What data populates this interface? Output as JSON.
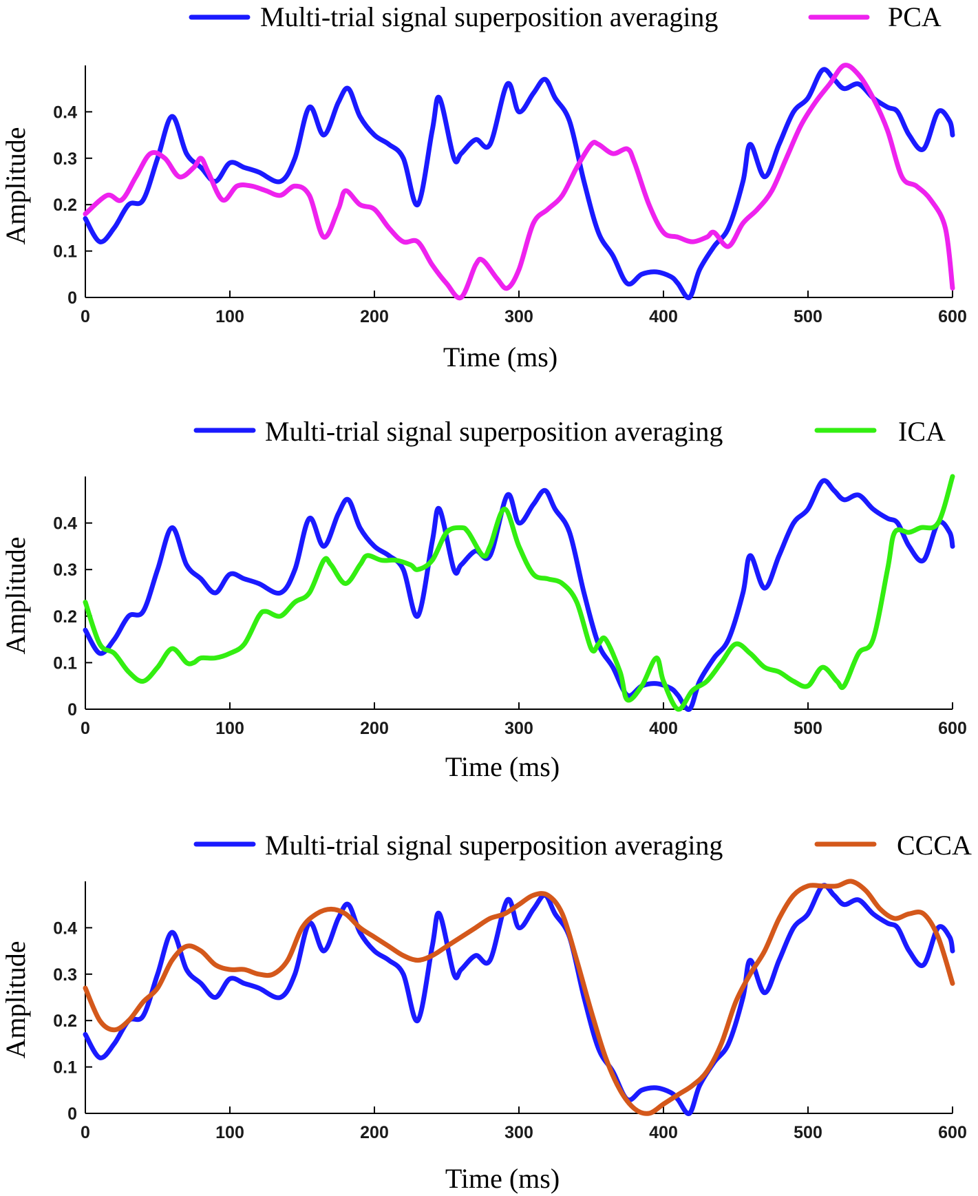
{
  "colors": {
    "blue": "#1a1aff",
    "pca": "#ee22ee",
    "ica": "#33ee11",
    "ccca": "#d4581b"
  },
  "chart_data": [
    {
      "type": "line",
      "xlabel": "Time (ms)",
      "ylabel": "Amplitude",
      "xlim": [
        0,
        600
      ],
      "ylim": [
        0,
        0.5
      ],
      "xticks": [
        "0",
        "100",
        "200",
        "300",
        "400",
        "500",
        "600"
      ],
      "yticks": [
        "0",
        "0.1",
        "0.2",
        "0.3",
        "0.4"
      ],
      "legend_position": "top",
      "series": [
        {
          "name": "Multi-trial signal superposition averaging",
          "color": "#1a1aff",
          "x": [
            0,
            10,
            20,
            30,
            40,
            50,
            60,
            70,
            80,
            90,
            100,
            110,
            120,
            135,
            145,
            155,
            165,
            175,
            182,
            190,
            200,
            210,
            220,
            230,
            240,
            245,
            255,
            260,
            270,
            280,
            292,
            300,
            310,
            318,
            325,
            335,
            345,
            355,
            365,
            375,
            385,
            395,
            405,
            410,
            418,
            425,
            435,
            445,
            455,
            460,
            470,
            480,
            490,
            500,
            510,
            518,
            525,
            535,
            545,
            555,
            562,
            570,
            580,
            590,
            598,
            600
          ],
          "values": [
            0.17,
            0.12,
            0.15,
            0.2,
            0.21,
            0.3,
            0.39,
            0.31,
            0.28,
            0.25,
            0.29,
            0.28,
            0.27,
            0.25,
            0.3,
            0.41,
            0.35,
            0.42,
            0.45,
            0.39,
            0.35,
            0.33,
            0.3,
            0.2,
            0.36,
            0.43,
            0.3,
            0.31,
            0.34,
            0.33,
            0.46,
            0.4,
            0.44,
            0.47,
            0.43,
            0.38,
            0.25,
            0.14,
            0.09,
            0.03,
            0.05,
            0.055,
            0.045,
            0.03,
            0.0,
            0.06,
            0.11,
            0.15,
            0.25,
            0.33,
            0.26,
            0.33,
            0.4,
            0.43,
            0.49,
            0.47,
            0.45,
            0.46,
            0.43,
            0.41,
            0.4,
            0.35,
            0.32,
            0.4,
            0.38,
            0.35
          ]
        },
        {
          "name": "PCA",
          "color": "#ee22ee",
          "x": [
            0,
            15,
            25,
            35,
            45,
            55,
            65,
            75,
            80,
            85,
            95,
            105,
            115,
            125,
            135,
            145,
            155,
            165,
            175,
            180,
            190,
            200,
            210,
            220,
            230,
            240,
            250,
            260,
            270,
            275,
            285,
            292,
            300,
            310,
            320,
            330,
            340,
            350,
            355,
            365,
            375,
            380,
            390,
            400,
            410,
            420,
            430,
            435,
            445,
            455,
            465,
            475,
            485,
            495,
            505,
            515,
            525,
            535,
            545,
            555,
            565,
            575,
            585,
            595,
            600
          ],
          "values": [
            0.18,
            0.22,
            0.21,
            0.26,
            0.31,
            0.3,
            0.26,
            0.28,
            0.3,
            0.27,
            0.21,
            0.24,
            0.24,
            0.23,
            0.22,
            0.24,
            0.22,
            0.13,
            0.19,
            0.23,
            0.2,
            0.19,
            0.15,
            0.12,
            0.12,
            0.07,
            0.03,
            0.0,
            0.07,
            0.08,
            0.04,
            0.02,
            0.06,
            0.16,
            0.19,
            0.22,
            0.28,
            0.33,
            0.33,
            0.31,
            0.32,
            0.29,
            0.2,
            0.14,
            0.13,
            0.12,
            0.13,
            0.14,
            0.11,
            0.16,
            0.19,
            0.23,
            0.3,
            0.37,
            0.42,
            0.46,
            0.5,
            0.48,
            0.43,
            0.36,
            0.26,
            0.24,
            0.21,
            0.15,
            0.02
          ]
        }
      ]
    },
    {
      "type": "line",
      "xlabel": "Time (ms)",
      "ylabel": "Amplitude",
      "xlim": [
        0,
        600
      ],
      "ylim": [
        0,
        0.5
      ],
      "xticks": [
        "0",
        "100",
        "200",
        "300",
        "400",
        "500",
        "600"
      ],
      "yticks": [
        "0",
        "0.1",
        "0.2",
        "0.3",
        "0.4"
      ],
      "legend_position": "top",
      "series": [
        {
          "name": "Multi-trial signal superposition averaging",
          "color": "#1a1aff",
          "x": [
            0,
            10,
            20,
            30,
            40,
            50,
            60,
            70,
            80,
            90,
            100,
            110,
            120,
            135,
            145,
            155,
            165,
            175,
            182,
            190,
            200,
            210,
            220,
            230,
            240,
            245,
            255,
            260,
            270,
            280,
            292,
            300,
            310,
            318,
            325,
            335,
            345,
            355,
            365,
            375,
            385,
            395,
            405,
            410,
            418,
            425,
            435,
            445,
            455,
            460,
            470,
            480,
            490,
            500,
            510,
            518,
            525,
            535,
            545,
            555,
            562,
            570,
            580,
            590,
            598,
            600
          ],
          "values": [
            0.17,
            0.12,
            0.15,
            0.2,
            0.21,
            0.3,
            0.39,
            0.31,
            0.28,
            0.25,
            0.29,
            0.28,
            0.27,
            0.25,
            0.3,
            0.41,
            0.35,
            0.42,
            0.45,
            0.39,
            0.35,
            0.33,
            0.3,
            0.2,
            0.36,
            0.43,
            0.3,
            0.31,
            0.34,
            0.33,
            0.46,
            0.4,
            0.44,
            0.47,
            0.43,
            0.38,
            0.25,
            0.14,
            0.09,
            0.03,
            0.05,
            0.055,
            0.045,
            0.03,
            0.0,
            0.06,
            0.11,
            0.15,
            0.25,
            0.33,
            0.26,
            0.33,
            0.4,
            0.43,
            0.49,
            0.47,
            0.45,
            0.46,
            0.43,
            0.41,
            0.4,
            0.35,
            0.32,
            0.4,
            0.38,
            0.35
          ]
        },
        {
          "name": "ICA",
          "color": "#33ee11",
          "x": [
            0,
            10,
            20,
            30,
            40,
            50,
            60,
            70,
            75,
            80,
            90,
            100,
            110,
            120,
            125,
            135,
            145,
            155,
            165,
            170,
            180,
            190,
            195,
            205,
            215,
            225,
            230,
            240,
            250,
            260,
            265,
            275,
            280,
            290,
            300,
            310,
            320,
            330,
            340,
            350,
            355,
            360,
            370,
            375,
            385,
            395,
            400,
            410,
            420,
            430,
            440,
            450,
            460,
            470,
            480,
            490,
            500,
            510,
            520,
            525,
            535,
            545,
            555,
            560,
            570,
            578,
            590,
            600
          ],
          "values": [
            0.23,
            0.14,
            0.12,
            0.08,
            0.06,
            0.09,
            0.13,
            0.1,
            0.1,
            0.11,
            0.11,
            0.12,
            0.14,
            0.2,
            0.21,
            0.2,
            0.23,
            0.25,
            0.32,
            0.31,
            0.27,
            0.31,
            0.33,
            0.32,
            0.32,
            0.31,
            0.3,
            0.32,
            0.38,
            0.39,
            0.38,
            0.33,
            0.35,
            0.43,
            0.35,
            0.29,
            0.28,
            0.27,
            0.23,
            0.13,
            0.14,
            0.15,
            0.08,
            0.02,
            0.05,
            0.11,
            0.06,
            0.0,
            0.04,
            0.06,
            0.1,
            0.14,
            0.12,
            0.09,
            0.08,
            0.06,
            0.05,
            0.09,
            0.06,
            0.05,
            0.12,
            0.15,
            0.3,
            0.38,
            0.38,
            0.39,
            0.4,
            0.5
          ]
        }
      ]
    },
    {
      "type": "line",
      "xlabel": "Time (ms)",
      "ylabel": "Amplitude",
      "xlim": [
        0,
        600
      ],
      "ylim": [
        0,
        0.5
      ],
      "xticks": [
        "0",
        "100",
        "200",
        "300",
        "400",
        "500",
        "600"
      ],
      "yticks": [
        "0",
        "0.1",
        "0.2",
        "0.3",
        "0.4"
      ],
      "legend_position": "top",
      "series": [
        {
          "name": "Multi-trial signal superposition averaging",
          "color": "#1a1aff",
          "x": [
            0,
            10,
            20,
            30,
            40,
            50,
            60,
            70,
            80,
            90,
            100,
            110,
            120,
            135,
            145,
            155,
            165,
            175,
            182,
            190,
            200,
            210,
            220,
            230,
            240,
            245,
            255,
            260,
            270,
            280,
            292,
            300,
            310,
            318,
            325,
            335,
            345,
            355,
            365,
            375,
            385,
            395,
            405,
            410,
            418,
            425,
            435,
            445,
            455,
            460,
            470,
            480,
            490,
            500,
            510,
            518,
            525,
            535,
            545,
            555,
            562,
            570,
            580,
            590,
            598,
            600
          ],
          "values": [
            0.17,
            0.12,
            0.15,
            0.2,
            0.21,
            0.3,
            0.39,
            0.31,
            0.28,
            0.25,
            0.29,
            0.28,
            0.27,
            0.25,
            0.3,
            0.41,
            0.35,
            0.42,
            0.45,
            0.39,
            0.35,
            0.33,
            0.3,
            0.2,
            0.36,
            0.43,
            0.3,
            0.31,
            0.34,
            0.33,
            0.46,
            0.4,
            0.44,
            0.47,
            0.43,
            0.38,
            0.25,
            0.14,
            0.09,
            0.03,
            0.05,
            0.055,
            0.045,
            0.03,
            0.0,
            0.06,
            0.11,
            0.15,
            0.25,
            0.33,
            0.26,
            0.33,
            0.4,
            0.43,
            0.49,
            0.47,
            0.45,
            0.46,
            0.43,
            0.41,
            0.4,
            0.35,
            0.32,
            0.4,
            0.38,
            0.35
          ]
        },
        {
          "name": "CCCA",
          "color": "#d4581b",
          "x": [
            0,
            10,
            20,
            30,
            40,
            50,
            60,
            70,
            80,
            90,
            100,
            110,
            120,
            130,
            140,
            150,
            160,
            170,
            180,
            190,
            200,
            210,
            220,
            230,
            240,
            250,
            260,
            270,
            280,
            290,
            300,
            310,
            320,
            330,
            340,
            350,
            360,
            370,
            380,
            390,
            400,
            410,
            420,
            430,
            440,
            450,
            460,
            470,
            480,
            490,
            500,
            510,
            520,
            530,
            540,
            550,
            560,
            570,
            580,
            590,
            600
          ],
          "values": [
            0.27,
            0.2,
            0.18,
            0.2,
            0.24,
            0.27,
            0.33,
            0.36,
            0.35,
            0.32,
            0.31,
            0.31,
            0.3,
            0.3,
            0.33,
            0.4,
            0.43,
            0.44,
            0.43,
            0.4,
            0.38,
            0.36,
            0.34,
            0.33,
            0.34,
            0.36,
            0.38,
            0.4,
            0.42,
            0.43,
            0.45,
            0.47,
            0.47,
            0.43,
            0.33,
            0.22,
            0.12,
            0.05,
            0.01,
            0.0,
            0.02,
            0.04,
            0.06,
            0.09,
            0.15,
            0.24,
            0.3,
            0.35,
            0.42,
            0.47,
            0.49,
            0.49,
            0.49,
            0.5,
            0.48,
            0.44,
            0.42,
            0.43,
            0.43,
            0.38,
            0.28
          ]
        }
      ]
    }
  ]
}
